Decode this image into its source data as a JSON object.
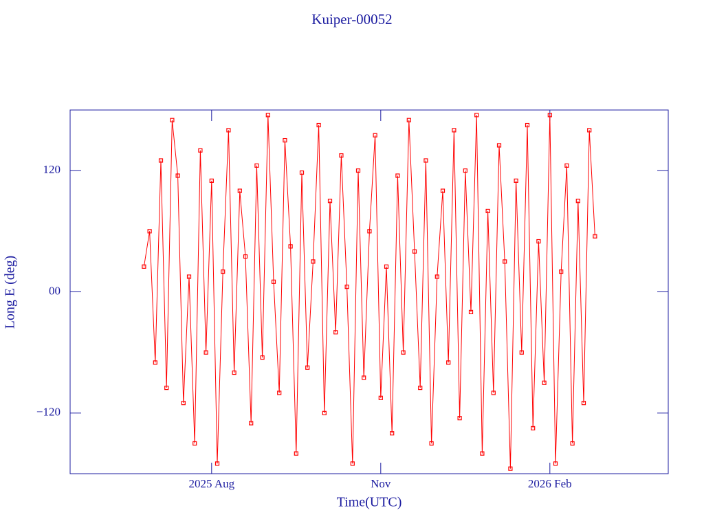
{
  "chart_data": {
    "type": "line",
    "title": "Kuiper-00052",
    "xlabel": "Time(UTC)",
    "ylabel": "Long E (deg)",
    "x": [
      5.8,
      5.9,
      6.0,
      6.1,
      6.2,
      6.3,
      6.4,
      6.5,
      6.6,
      6.7,
      6.8,
      6.9,
      7.0,
      7.1,
      7.2,
      7.3,
      7.4,
      7.5,
      7.6,
      7.7,
      7.8,
      7.9,
      8.0,
      8.1,
      8.2,
      8.3,
      8.4,
      8.5,
      8.6,
      8.7,
      8.8,
      8.9,
      9.0,
      9.1,
      9.2,
      9.3,
      9.4,
      9.5,
      9.6,
      9.7,
      9.8,
      9.9,
      10.0,
      10.1,
      10.2,
      10.3,
      10.4,
      10.5,
      10.6,
      10.7,
      10.8,
      10.9,
      11.0,
      11.1,
      11.2,
      11.3,
      11.4,
      11.5,
      11.6,
      11.7,
      11.8,
      11.9,
      12.0,
      12.1,
      12.2,
      12.3,
      12.4,
      12.5,
      12.6,
      12.7,
      12.8,
      12.9,
      13.0,
      13.1,
      13.2,
      13.3,
      13.4,
      13.5,
      13.6,
      13.7,
      13.8
    ],
    "series": [
      {
        "name": "Long E",
        "color": "#ff0000",
        "values": [
          25,
          60,
          -70,
          130,
          -95,
          170,
          115,
          -110,
          15,
          -150,
          140,
          -60,
          110,
          -170,
          20,
          160,
          -80,
          100,
          35,
          -130,
          125,
          -65,
          175,
          10,
          -100,
          150,
          45,
          -160,
          118,
          -75,
          30,
          165,
          -120,
          90,
          -40,
          135,
          5,
          -170,
          120,
          -85,
          60,
          155,
          -105,
          25,
          -140,
          115,
          -60,
          170,
          40,
          -95,
          130,
          -150,
          15,
          100,
          -70,
          160,
          -125,
          120,
          -20,
          175,
          -160,
          80,
          -100,
          145,
          30,
          -175,
          110,
          -60,
          165,
          -135,
          50,
          -90,
          175,
          -170,
          20,
          125,
          -150,
          90,
          -110,
          160,
          55
        ]
      }
    ],
    "xlim": [
      4.49,
      15.1
    ],
    "xticks": [
      {
        "value": 7,
        "label": "2025 Aug"
      },
      {
        "value": 10,
        "label": "Nov"
      },
      {
        "value": 13,
        "label": "2026 Feb"
      }
    ],
    "ylim": [
      -180,
      180
    ],
    "yticks": [
      {
        "value": -120,
        "label": "−120"
      },
      {
        "value": 0,
        "label": "00"
      },
      120
    ]
  }
}
